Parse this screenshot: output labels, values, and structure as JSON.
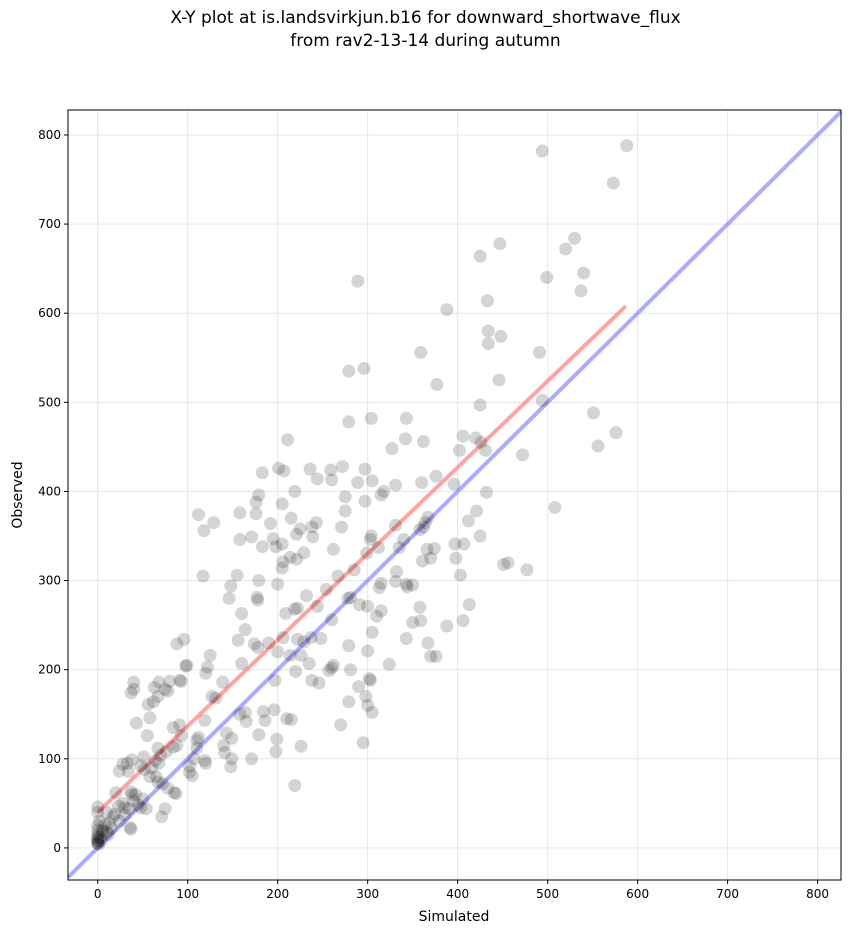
{
  "chart_data": {
    "type": "scatter",
    "title": [
      "X-Y plot at is.landsvirkjun.b16 for downward_shortwave_flux",
      "from rav2-13-14 during autumn"
    ],
    "xlabel": "Simulated",
    "ylabel": "Observed",
    "xlim": [
      -33,
      826
    ],
    "ylim": [
      -36,
      828
    ],
    "xticks": [
      0,
      100,
      200,
      300,
      400,
      500,
      600,
      700,
      800
    ],
    "yticks": [
      0,
      100,
      200,
      300,
      400,
      500,
      600,
      700,
      800
    ],
    "grid": true,
    "colors": {
      "points": "#000000",
      "fit_line": "#ff6666",
      "identity_line": "#6666ff"
    },
    "fit_line": {
      "x": [
        0,
        587
      ],
      "y": [
        40,
        608
      ]
    },
    "identity_line": {
      "x": [
        -33,
        826
      ],
      "y": [
        -33,
        826
      ]
    },
    "points": [
      [
        588,
        788
      ],
      [
        494,
        782
      ],
      [
        573,
        746
      ],
      [
        530,
        684
      ],
      [
        520,
        672
      ],
      [
        447,
        678
      ],
      [
        425,
        664
      ],
      [
        540,
        645
      ],
      [
        499,
        640
      ],
      [
        289,
        636
      ],
      [
        537,
        625
      ],
      [
        433,
        614
      ],
      [
        388,
        604
      ],
      [
        434,
        580
      ],
      [
        448,
        574
      ],
      [
        434,
        566
      ],
      [
        491,
        556
      ],
      [
        359,
        556
      ],
      [
        296,
        538
      ],
      [
        279,
        535
      ],
      [
        377,
        520
      ],
      [
        446,
        525
      ],
      [
        494,
        502
      ],
      [
        425,
        497
      ],
      [
        551,
        488
      ],
      [
        304,
        482
      ],
      [
        279,
        478
      ],
      [
        343,
        482
      ],
      [
        576,
        466
      ],
      [
        556,
        451
      ],
      [
        406,
        462
      ],
      [
        420,
        460
      ],
      [
        426,
        455
      ],
      [
        431,
        446
      ],
      [
        402,
        446
      ],
      [
        362,
        456
      ],
      [
        342,
        459
      ],
      [
        327,
        448
      ],
      [
        211,
        458
      ],
      [
        201,
        426
      ],
      [
        183,
        421
      ],
      [
        207,
        423
      ],
      [
        236,
        425
      ],
      [
        244,
        414
      ],
      [
        272,
        428
      ],
      [
        259,
        424
      ],
      [
        260,
        413
      ],
      [
        297,
        425
      ],
      [
        289,
        410
      ],
      [
        305,
        412
      ],
      [
        376,
        417
      ],
      [
        396,
        408
      ],
      [
        360,
        410
      ],
      [
        331,
        407
      ],
      [
        318,
        400
      ],
      [
        315,
        396
      ],
      [
        275,
        394
      ],
      [
        297,
        389
      ],
      [
        176,
        388
      ],
      [
        179,
        396
      ],
      [
        205,
        386
      ],
      [
        219,
        400
      ],
      [
        432,
        399
      ],
      [
        508,
        382
      ],
      [
        421,
        378
      ],
      [
        472,
        441
      ],
      [
        412,
        367
      ],
      [
        367,
        371
      ],
      [
        362,
        360
      ],
      [
        364,
        365
      ],
      [
        340,
        346
      ],
      [
        358,
        357
      ],
      [
        304,
        350
      ],
      [
        303,
        346
      ],
      [
        275,
        378
      ],
      [
        271,
        360
      ],
      [
        243,
        365
      ],
      [
        238,
        360
      ],
      [
        215,
        370
      ],
      [
        239,
        349
      ],
      [
        225,
        358
      ],
      [
        221,
        352
      ],
      [
        205,
        341
      ],
      [
        198,
        338
      ],
      [
        192,
        364
      ],
      [
        195,
        347
      ],
      [
        176,
        375
      ],
      [
        158,
        376
      ],
      [
        171,
        349
      ],
      [
        158,
        346
      ],
      [
        112,
        374
      ],
      [
        129,
        365
      ],
      [
        118,
        356
      ],
      [
        183,
        338
      ],
      [
        229,
        331
      ],
      [
        262,
        335
      ],
      [
        366,
        335
      ],
      [
        374,
        336
      ],
      [
        361,
        322
      ],
      [
        397,
        341
      ],
      [
        407,
        341
      ],
      [
        425,
        350
      ],
      [
        413,
        273
      ],
      [
        403,
        306
      ],
      [
        398,
        325
      ],
      [
        370,
        325
      ],
      [
        451,
        318
      ],
      [
        456,
        320
      ],
      [
        477,
        312
      ],
      [
        285,
        312
      ],
      [
        267,
        305
      ],
      [
        254,
        290
      ],
      [
        232,
        283
      ],
      [
        205,
        314
      ],
      [
        200,
        296
      ],
      [
        206,
        321
      ],
      [
        221,
        324
      ],
      [
        214,
        326
      ],
      [
        335,
        337
      ],
      [
        331,
        362
      ],
      [
        299,
        331
      ],
      [
        312,
        337
      ],
      [
        315,
        297
      ],
      [
        331,
        299
      ],
      [
        332,
        310
      ],
      [
        343,
        296
      ],
      [
        344,
        293
      ],
      [
        350,
        295
      ],
      [
        313,
        292
      ],
      [
        310,
        260
      ],
      [
        315,
        266
      ],
      [
        300,
        271
      ],
      [
        291,
        273
      ],
      [
        278,
        280
      ],
      [
        281,
        281
      ],
      [
        244,
        271
      ],
      [
        209,
        263
      ],
      [
        219,
        268
      ],
      [
        222,
        269
      ],
      [
        177,
        281
      ],
      [
        178,
        278
      ],
      [
        179,
        300
      ],
      [
        160,
        263
      ],
      [
        164,
        245
      ],
      [
        156,
        233
      ],
      [
        146,
        280
      ],
      [
        148,
        294
      ],
      [
        155,
        306
      ],
      [
        117,
        305
      ],
      [
        358,
        270
      ],
      [
        359,
        255
      ],
      [
        350,
        253
      ],
      [
        388,
        249
      ],
      [
        406,
        255
      ],
      [
        370,
        215
      ],
      [
        376,
        215
      ],
      [
        367,
        230
      ],
      [
        343,
        235
      ],
      [
        305,
        242
      ],
      [
        300,
        221
      ],
      [
        324,
        206
      ],
      [
        279,
        227
      ],
      [
        260,
        256
      ],
      [
        248,
        235
      ],
      [
        262,
        205
      ],
      [
        237,
        236
      ],
      [
        229,
        231
      ],
      [
        222,
        234
      ],
      [
        206,
        236
      ],
      [
        214,
        216
      ],
      [
        226,
        216
      ],
      [
        200,
        220
      ],
      [
        190,
        230
      ],
      [
        160,
        207
      ],
      [
        174,
        229
      ],
      [
        178,
        225
      ],
      [
        197,
        188
      ],
      [
        220,
        198
      ],
      [
        235,
        207
      ],
      [
        238,
        188
      ],
      [
        246,
        185
      ],
      [
        257,
        199
      ],
      [
        260,
        202
      ],
      [
        281,
        200
      ],
      [
        290,
        181
      ],
      [
        298,
        170
      ],
      [
        300,
        160
      ],
      [
        302,
        190
      ],
      [
        303,
        188
      ],
      [
        305,
        152
      ],
      [
        279,
        164
      ],
      [
        270,
        138
      ],
      [
        295,
        118
      ],
      [
        226,
        114
      ],
      [
        198,
        108
      ],
      [
        210,
        145
      ],
      [
        215,
        144
      ],
      [
        196,
        155
      ],
      [
        199,
        122
      ],
      [
        186,
        143
      ],
      [
        179,
        127
      ],
      [
        184,
        153
      ],
      [
        164,
        152
      ],
      [
        165,
        142
      ],
      [
        158,
        150
      ],
      [
        171,
        100
      ],
      [
        139,
        186
      ],
      [
        131,
        168
      ],
      [
        127,
        170
      ],
      [
        119,
        143
      ],
      [
        122,
        203
      ],
      [
        120,
        196
      ],
      [
        125,
        216
      ],
      [
        110,
        112
      ],
      [
        107,
        100
      ],
      [
        112,
        124
      ],
      [
        110,
        121
      ],
      [
        143,
        129
      ],
      [
        140,
        115
      ],
      [
        141,
        107
      ],
      [
        148,
        91
      ],
      [
        149,
        123
      ],
      [
        149,
        100
      ],
      [
        88,
        229
      ],
      [
        96,
        234
      ],
      [
        99,
        205
      ],
      [
        93,
        187
      ],
      [
        91,
        188
      ],
      [
        80,
        187
      ],
      [
        78,
        176
      ],
      [
        75,
        178
      ],
      [
        68,
        186
      ],
      [
        63,
        180
      ],
      [
        67,
        170
      ],
      [
        62,
        164
      ],
      [
        56,
        161
      ],
      [
        58,
        146
      ],
      [
        43,
        140
      ],
      [
        40,
        186
      ],
      [
        37,
        174
      ],
      [
        40,
        178
      ],
      [
        51,
        102
      ],
      [
        38,
        99
      ],
      [
        33,
        95
      ],
      [
        28,
        94
      ],
      [
        24,
        86
      ],
      [
        34,
        86
      ],
      [
        48,
        92
      ],
      [
        55,
        126
      ],
      [
        67,
        112
      ],
      [
        76,
        108
      ],
      [
        84,
        113
      ],
      [
        88,
        115
      ],
      [
        84,
        135
      ],
      [
        91,
        138
      ],
      [
        93,
        126
      ],
      [
        102,
        92
      ],
      [
        102,
        85
      ],
      [
        105,
        81
      ],
      [
        120,
        95
      ],
      [
        119,
        98
      ],
      [
        78,
        67
      ],
      [
        85,
        62
      ],
      [
        87,
        61
      ],
      [
        72,
        72
      ],
      [
        67,
        74
      ],
      [
        71,
        35
      ],
      [
        75,
        44
      ],
      [
        54,
        44
      ],
      [
        48,
        45
      ],
      [
        45,
        48
      ],
      [
        38,
        60
      ],
      [
        37,
        63
      ],
      [
        40,
        53
      ],
      [
        35,
        44
      ],
      [
        28,
        50
      ],
      [
        30,
        37
      ],
      [
        20,
        62
      ],
      [
        23,
        47
      ],
      [
        19,
        38
      ],
      [
        17,
        35
      ],
      [
        24,
        30
      ],
      [
        36,
        23
      ],
      [
        37,
        21
      ],
      [
        15,
        22
      ],
      [
        12,
        15
      ],
      [
        5,
        20
      ],
      [
        10,
        40
      ],
      [
        0,
        46
      ],
      [
        0,
        40
      ],
      [
        2,
        30
      ],
      [
        0,
        25
      ],
      [
        0,
        20
      ],
      [
        0,
        15
      ],
      [
        0,
        12
      ],
      [
        0,
        10
      ],
      [
        0,
        8
      ],
      [
        0,
        6
      ],
      [
        0,
        5
      ],
      [
        1,
        4
      ],
      [
        3,
        12
      ],
      [
        4,
        8
      ],
      [
        6,
        18
      ],
      [
        8,
        26
      ],
      [
        13,
        28
      ],
      [
        10,
        18
      ],
      [
        219,
        70
      ],
      [
        60,
        90
      ],
      [
        64,
        98
      ],
      [
        70,
        104
      ],
      [
        68,
        95
      ],
      [
        98,
        204
      ],
      [
        58,
        80
      ],
      [
        52,
        88
      ],
      [
        65,
        80
      ],
      [
        50,
        55
      ],
      [
        42,
        60
      ],
      [
        30,
        45
      ]
    ]
  }
}
